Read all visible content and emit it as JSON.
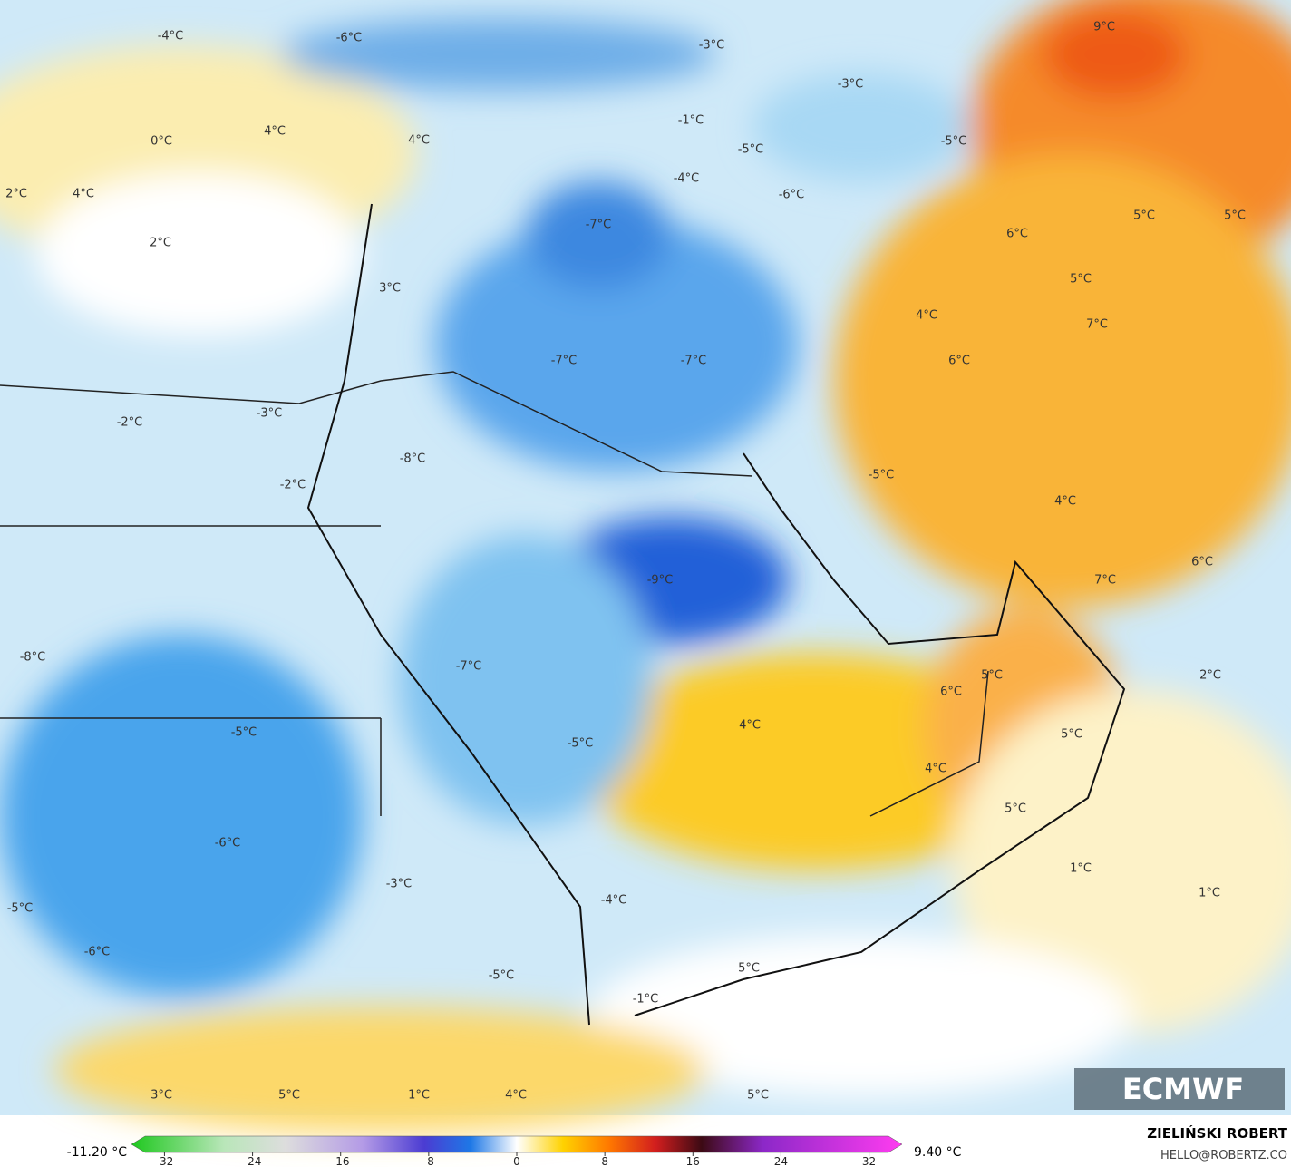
{
  "map": {
    "labels": [
      "-4°C",
      "-6°C",
      "-3°C",
      "-3°C",
      "0°C",
      "4°C",
      "4°C",
      "-1°C",
      "-5°C",
      "-5°C",
      "-4°C",
      "-6°C",
      "2°C",
      "4°C",
      "9°C",
      "2°C",
      "-7°C",
      "6°C",
      "5°C",
      "5°C",
      "3°C",
      "5°C",
      "4°C",
      "7°C",
      "-7°C",
      "-7°C",
      "6°C",
      "-2°C",
      "-3°C",
      "-8°C",
      "-5°C",
      "-2°C",
      "4°C",
      "-9°C",
      "7°C",
      "6°C",
      "-8°C",
      "-7°C",
      "2°C",
      "5°C",
      "6°C",
      "4°C",
      "-5°C",
      "5°C",
      "-5°C",
      "4°C",
      "5°C",
      "-6°C",
      "1°C",
      "1°C",
      "-3°C",
      "-4°C",
      "-5°C",
      "-6°C",
      "5°C",
      "-5°C",
      "-1°C",
      "3°C",
      "5°C",
      "1°C",
      "4°C",
      "5°C"
    ],
    "logo": "ECMWF"
  },
  "colorbar": {
    "min_label": "-11.20 °C",
    "max_label": "9.40 °C",
    "lim": [
      -35,
      35
    ],
    "ticks": [
      -32,
      -24,
      -16,
      -8,
      0,
      8,
      16,
      24,
      32
    ]
  },
  "credits": {
    "author": "ZIELIŃSKI ROBERT",
    "contact": "HELLO@ROBERTZ.CO"
  }
}
